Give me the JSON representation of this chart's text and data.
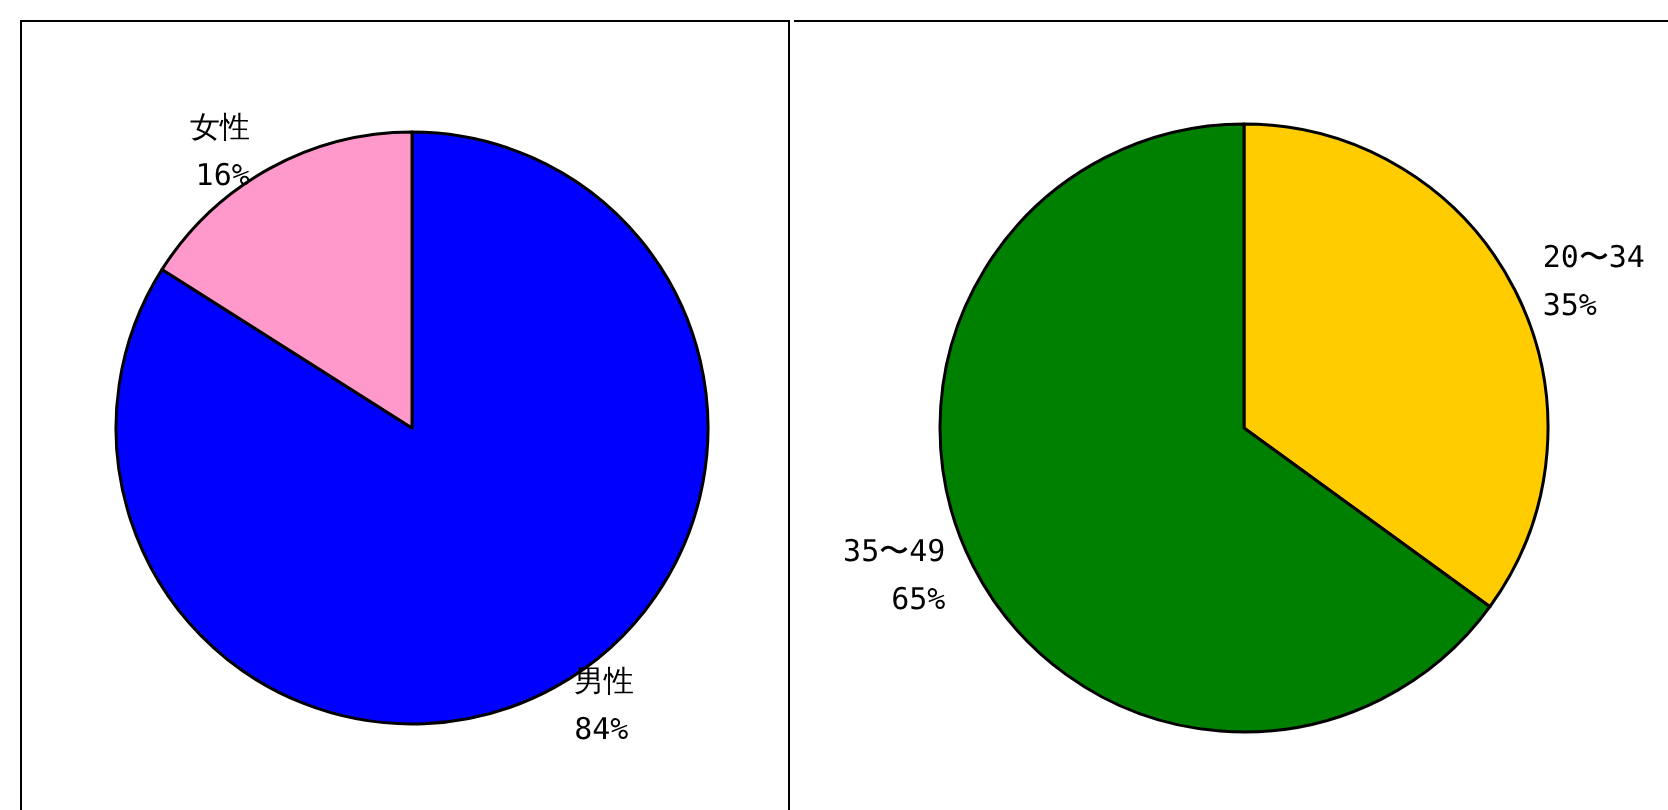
{
  "chart_data": [
    {
      "type": "pie",
      "categories": [
        "男性",
        "女性"
      ],
      "values": [
        84,
        16
      ],
      "colors": [
        "#0000ff",
        "#ff99cc"
      ],
      "value_labels": [
        "84%",
        "16%"
      ]
    },
    {
      "type": "pie",
      "categories": [
        "20〜34",
        "35〜49"
      ],
      "values": [
        35,
        65
      ],
      "colors": [
        "#ffcc00",
        "#008000"
      ],
      "value_labels": [
        "35%",
        "65%"
      ]
    }
  ]
}
